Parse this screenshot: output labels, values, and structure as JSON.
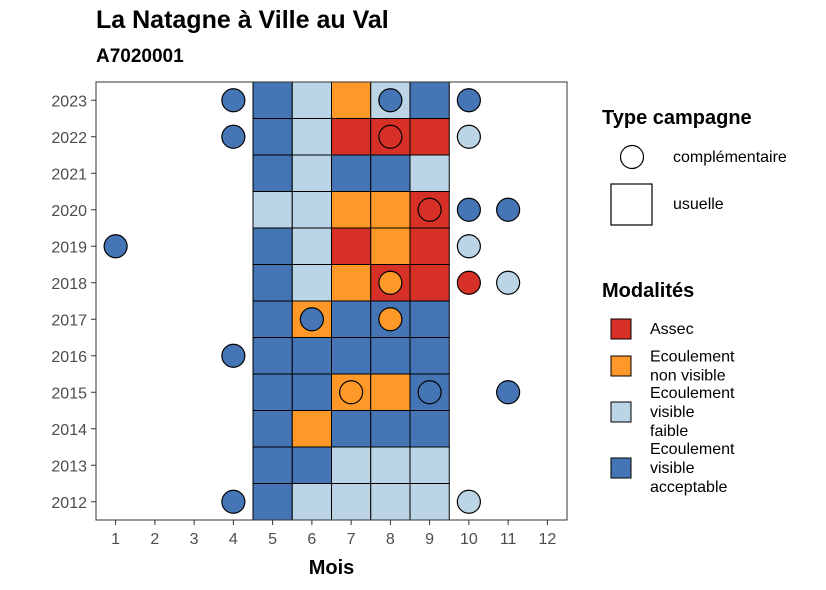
{
  "chart_data": {
    "type": "heatmap",
    "title": "La Natagne à Ville au Val",
    "subtitle": "A7020001",
    "xlabel": "Mois",
    "ylabel": "",
    "x_ticks": [
      1,
      2,
      3,
      4,
      5,
      6,
      7,
      8,
      9,
      10,
      11,
      12
    ],
    "y_ticks": [
      2012,
      2013,
      2014,
      2015,
      2016,
      2017,
      2018,
      2019,
      2020,
      2021,
      2022,
      2023
    ],
    "xlim": [
      0.5,
      12.5
    ],
    "ylim": [
      2011.5,
      2023.5
    ],
    "grid": false,
    "colors": {
      "Assec": "#d73027",
      "Ecoulement non visible": "#fe9929",
      "Ecoulement visible faible": "#bcd5e6",
      "Ecoulement visible acceptable": "#4575b4"
    },
    "legend_type": {
      "title": "Type campagne",
      "entries": [
        {
          "key": "complementaire",
          "label": "complémentaire",
          "shape": "circle"
        },
        {
          "key": "usuelle",
          "label": "usuelle",
          "shape": "square"
        }
      ]
    },
    "legend_modalites": {
      "title": "Modalités",
      "entries": [
        {
          "key": "Assec",
          "lines": [
            "Assec"
          ]
        },
        {
          "key": "Ecoulement non visible",
          "lines": [
            "Ecoulement",
            "non visible"
          ]
        },
        {
          "key": "Ecoulement visible faible",
          "lines": [
            "Ecoulement",
            "visible",
            "faible"
          ]
        },
        {
          "key": "Ecoulement visible acceptable",
          "lines": [
            "Ecoulement",
            "visible",
            "acceptable"
          ]
        }
      ]
    },
    "usuelle": [
      {
        "year": 2023,
        "values": [
          "Ecoulement visible acceptable",
          "Ecoulement visible faible",
          "Ecoulement non visible",
          "Ecoulement visible faible",
          "Ecoulement visible acceptable"
        ]
      },
      {
        "year": 2022,
        "values": [
          "Ecoulement visible acceptable",
          "Ecoulement visible faible",
          "Assec",
          "Assec",
          "Assec"
        ]
      },
      {
        "year": 2021,
        "values": [
          "Ecoulement visible acceptable",
          "Ecoulement visible faible",
          "Ecoulement visible acceptable",
          "Ecoulement visible acceptable",
          "Ecoulement visible faible"
        ]
      },
      {
        "year": 2020,
        "values": [
          "Ecoulement visible faible",
          "Ecoulement visible faible",
          "Ecoulement non visible",
          "Ecoulement non visible",
          "Assec"
        ]
      },
      {
        "year": 2019,
        "values": [
          "Ecoulement visible acceptable",
          "Ecoulement visible faible",
          "Assec",
          "Ecoulement non visible",
          "Assec"
        ]
      },
      {
        "year": 2018,
        "values": [
          "Ecoulement visible acceptable",
          "Ecoulement visible faible",
          "Ecoulement non visible",
          "Assec",
          "Assec"
        ]
      },
      {
        "year": 2017,
        "values": [
          "Ecoulement visible acceptable",
          "Ecoulement non visible",
          "Ecoulement visible acceptable",
          "Ecoulement visible acceptable",
          "Ecoulement visible acceptable"
        ]
      },
      {
        "year": 2016,
        "values": [
          "Ecoulement visible acceptable",
          "Ecoulement visible acceptable",
          "Ecoulement visible acceptable",
          "Ecoulement visible acceptable",
          "Ecoulement visible acceptable"
        ]
      },
      {
        "year": 2015,
        "values": [
          "Ecoulement visible acceptable",
          "Ecoulement visible acceptable",
          "Ecoulement non visible",
          "Ecoulement non visible",
          "Ecoulement visible acceptable"
        ]
      },
      {
        "year": 2014,
        "values": [
          "Ecoulement visible acceptable",
          "Ecoulement non visible",
          "Ecoulement visible acceptable",
          "Ecoulement visible acceptable",
          "Ecoulement visible acceptable"
        ]
      },
      {
        "year": 2013,
        "values": [
          "Ecoulement visible acceptable",
          "Ecoulement visible acceptable",
          "Ecoulement visible faible",
          "Ecoulement visible faible",
          "Ecoulement visible faible"
        ]
      },
      {
        "year": 2012,
        "values": [
          "Ecoulement visible acceptable",
          "Ecoulement visible faible",
          "Ecoulement visible faible",
          "Ecoulement visible faible",
          "Ecoulement visible faible"
        ]
      }
    ],
    "usuelle_months": [
      5,
      6,
      7,
      8,
      9
    ],
    "complementaire": [
      {
        "year": 2023,
        "month": 4,
        "value": "Ecoulement visible acceptable"
      },
      {
        "year": 2023,
        "month": 8,
        "value": "Ecoulement visible acceptable"
      },
      {
        "year": 2023,
        "month": 10,
        "value": "Ecoulement visible acceptable"
      },
      {
        "year": 2022,
        "month": 4,
        "value": "Ecoulement visible acceptable"
      },
      {
        "year": 2022,
        "month": 8,
        "value": "Assec"
      },
      {
        "year": 2022,
        "month": 10,
        "value": "Ecoulement visible faible"
      },
      {
        "year": 2020,
        "month": 9,
        "value": "Assec"
      },
      {
        "year": 2020,
        "month": 10,
        "value": "Ecoulement visible acceptable"
      },
      {
        "year": 2020,
        "month": 11,
        "value": "Ecoulement visible acceptable"
      },
      {
        "year": 2019,
        "month": 1,
        "value": "Ecoulement visible acceptable"
      },
      {
        "year": 2019,
        "month": 10,
        "value": "Ecoulement visible faible"
      },
      {
        "year": 2018,
        "month": 8,
        "value": "Ecoulement non visible"
      },
      {
        "year": 2018,
        "month": 10,
        "value": "Assec"
      },
      {
        "year": 2018,
        "month": 11,
        "value": "Ecoulement visible faible"
      },
      {
        "year": 2017,
        "month": 6,
        "value": "Ecoulement visible acceptable"
      },
      {
        "year": 2017,
        "month": 8,
        "value": "Ecoulement non visible"
      },
      {
        "year": 2016,
        "month": 4,
        "value": "Ecoulement visible acceptable"
      },
      {
        "year": 2015,
        "month": 7,
        "value": "Ecoulement non visible"
      },
      {
        "year": 2015,
        "month": 9,
        "value": "Ecoulement visible acceptable"
      },
      {
        "year": 2015,
        "month": 11,
        "value": "Ecoulement visible acceptable"
      },
      {
        "year": 2012,
        "month": 4,
        "value": "Ecoulement visible acceptable"
      },
      {
        "year": 2012,
        "month": 10,
        "value": "Ecoulement visible faible"
      }
    ]
  }
}
